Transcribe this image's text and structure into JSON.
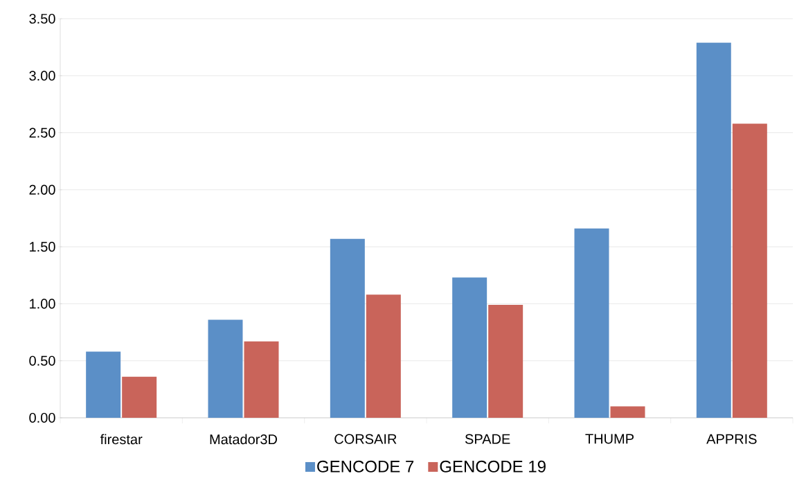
{
  "chart_data": {
    "type": "bar",
    "categories": [
      "firestar",
      "Matador3D",
      "CORSAIR",
      "SPADE",
      "THUMP",
      "APPRIS"
    ],
    "series": [
      {
        "name": "GENCODE 7",
        "color": "#5b8fc7",
        "values": [
          0.58,
          0.86,
          1.57,
          1.23,
          1.66,
          3.29
        ]
      },
      {
        "name": "GENCODE 19",
        "color": "#c9645a",
        "values": [
          0.36,
          0.67,
          1.08,
          0.99,
          0.1,
          2.58
        ]
      }
    ],
    "ylim": [
      0,
      3.5
    ],
    "yticks": [
      {
        "value": 0,
        "label": "0.00"
      },
      {
        "value": 0.5,
        "label": "0.50"
      },
      {
        "value": 1,
        "label": "1.00"
      },
      {
        "value": 1.5,
        "label": "1.50"
      },
      {
        "value": 2,
        "label": "2.00"
      },
      {
        "value": 2.5,
        "label": "2.50"
      },
      {
        "value": 3,
        "label": "3.00"
      },
      {
        "value": 3.5,
        "label": "3.50"
      }
    ],
    "grid": "y",
    "legend": "bottom"
  }
}
